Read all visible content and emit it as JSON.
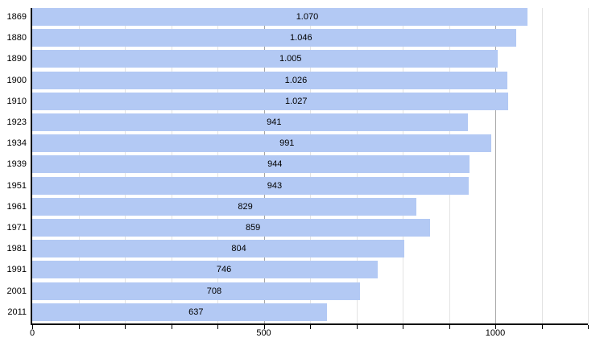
{
  "chart_data": {
    "type": "bar",
    "orientation": "horizontal",
    "title": "",
    "xlabel": "",
    "ylabel": "",
    "legend": "none",
    "grid": "on",
    "categories": [
      "1869",
      "1880",
      "1890",
      "1900",
      "1910",
      "1923",
      "1934",
      "1939",
      "1951",
      "1961",
      "1971",
      "1981",
      "1991",
      "2001",
      "2011"
    ],
    "values": [
      1070,
      1046,
      1005,
      1026,
      1027,
      941,
      991,
      944,
      943,
      829,
      859,
      804,
      746,
      708,
      637
    ],
    "value_labels": [
      "1.070",
      "1.046",
      "1.005",
      "1.026",
      "1.027",
      "941",
      "991",
      "944",
      "943",
      "829",
      "859",
      "804",
      "746",
      "708",
      "637"
    ],
    "xlim": [
      0,
      1200
    ],
    "x_ticks": [
      0,
      100,
      200,
      300,
      400,
      500,
      600,
      700,
      800,
      900,
      1000,
      1100,
      1200
    ],
    "x_tick_labels": [
      {
        "value": 0,
        "label": "0"
      },
      {
        "value": 500,
        "label": "500"
      },
      {
        "value": 1000,
        "label": "1000"
      }
    ],
    "grid_minor": [
      100,
      200,
      300,
      400,
      600,
      700,
      800,
      900,
      1100,
      1200
    ],
    "grid_major": [
      500,
      1000
    ],
    "colors": {
      "bar": "#b3c9f4",
      "minor_gridline": "#e3e3e3",
      "major_gridline": "#a6a6a6",
      "axis": "#000000",
      "text": "#000000"
    }
  }
}
